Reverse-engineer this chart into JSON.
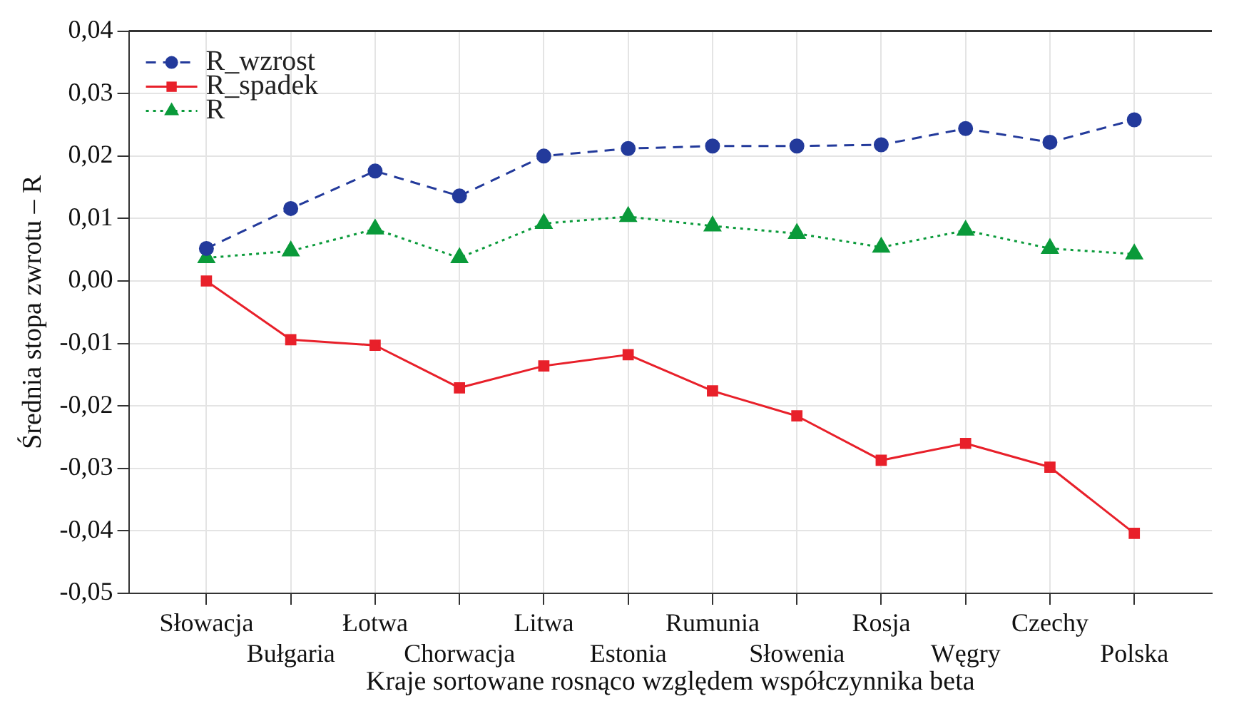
{
  "chart_data": {
    "type": "line",
    "xlabel": "Kraje sortowane rosnąco względem współczynnika beta",
    "ylabel": "Średnia stopa zwrotu – R",
    "categories": [
      "Słowacja",
      "Bułgaria",
      "Łotwa",
      "Chorwacja",
      "Litwa",
      "Estonia",
      "Rumunia",
      "Słowenia",
      "Rosja",
      "Węgry",
      "Czechy",
      "Polska"
    ],
    "series": [
      {
        "name": "R_wzrost",
        "color": "#233a9b",
        "marker": "circle",
        "line_style": "dashed",
        "values": [
          0.0052,
          0.0116,
          0.0176,
          0.0136,
          0.02,
          0.0212,
          0.0216,
          0.0216,
          0.0218,
          0.0244,
          0.0222,
          0.0258
        ]
      },
      {
        "name": "R_spadek",
        "color": "#e8202a",
        "marker": "square",
        "line_style": "solid",
        "values": [
          0.0,
          -0.0094,
          -0.0103,
          -0.0171,
          -0.0136,
          -0.0118,
          -0.0176,
          -0.0216,
          -0.0287,
          -0.026,
          -0.0298,
          -0.0404
        ]
      },
      {
        "name": "R",
        "color": "#0a9a3a",
        "marker": "triangle",
        "line_style": "dotted",
        "values": [
          0.0037,
          0.0048,
          0.0083,
          0.0037,
          0.0092,
          0.0103,
          0.0088,
          0.0076,
          0.0054,
          0.0081,
          0.0052,
          0.0043
        ]
      }
    ],
    "ylim": [
      -0.05,
      0.04
    ],
    "yticks": [
      {
        "value": -0.05,
        "label": "-0,05"
      },
      {
        "value": -0.04,
        "label": "-0,04"
      },
      {
        "value": -0.03,
        "label": "-0,03"
      },
      {
        "value": -0.02,
        "label": "-0,02"
      },
      {
        "value": -0.01,
        "label": "-0,01"
      },
      {
        "value": 0,
        "label": "0,00"
      },
      {
        "value": 0.01,
        "label": "0,01"
      },
      {
        "value": 0.02,
        "label": "0,02"
      },
      {
        "value": 0.03,
        "label": "0,03"
      },
      {
        "value": 0.04,
        "label": "0,04"
      }
    ],
    "grid": true,
    "legend": "top left"
  }
}
